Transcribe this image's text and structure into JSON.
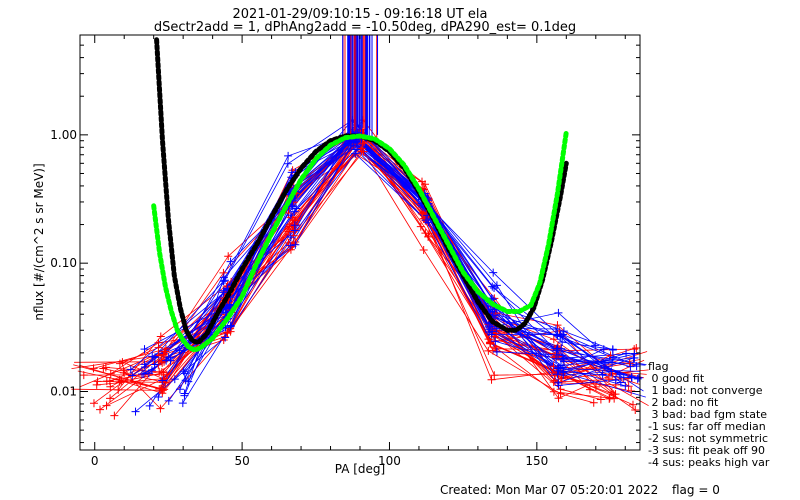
{
  "title_line1": "2021-01-29/09:10:15 - 09:16:18 UT ela",
  "title_line2": "dSectr2add = 1, dPhAng2add = -10.50deg, dPA290_est=   0.1deg",
  "created": "Created: Mon Mar 07 05:20:01 2022",
  "flag_value": "flag = 0",
  "legend": {
    "title": "flag",
    "items": [
      " 0 good fit",
      " 1 bad: not converge",
      " 2 bad: no fit",
      " 3 bad: bad fgm state",
      "-1 sus: far off median",
      "-2 sus: not symmetric",
      "-3 sus: fit peak off 90",
      "-4 sus: peaks high var"
    ]
  },
  "colors": {
    "red": "#ff0000",
    "blue": "#0000ff",
    "fit_black": "#000000",
    "fit_green": "#00ff00"
  },
  "chart_data": {
    "type": "line",
    "xlabel": "PA [deg]",
    "ylabel": "nflux [#/(cm^2 s sr MeV)]",
    "xlim": [
      -5,
      185
    ],
    "ylim": [
      0.0035,
      6.0
    ],
    "yscale": "log",
    "x_ticks": [
      0,
      50,
      100,
      150
    ],
    "x_tick_labels": [
      "0",
      "50",
      "100",
      "150"
    ],
    "y_ticks": [
      0.01,
      0.1,
      1.0
    ],
    "y_tick_labels": [
      "0.01",
      "0.10",
      "1.00"
    ],
    "sample_pa_red": [
      2,
      23,
      45,
      67,
      90,
      112,
      135,
      157,
      178
    ],
    "sample_pa_blue": [
      22,
      45,
      67,
      88,
      112,
      135,
      158,
      178
    ],
    "profile_red": [
      0.013,
      0.015,
      0.045,
      0.25,
      0.95,
      0.28,
      0.028,
      0.017,
      0.012
    ],
    "profile_blue": [
      0.014,
      0.05,
      0.3,
      0.97,
      0.3,
      0.045,
      0.022,
      0.016
    ],
    "series": [
      {
        "name": "fit-black",
        "x": [
          21,
          23,
          25,
          27,
          29,
          31,
          33,
          35,
          38,
          42,
          46,
          50,
          55,
          60,
          65,
          70,
          75,
          80,
          85,
          90,
          95,
          100,
          105,
          110,
          115,
          120,
          125,
          130,
          135,
          140,
          143,
          146,
          149,
          152,
          155,
          158,
          160
        ],
        "values": [
          5.5,
          0.9,
          0.22,
          0.08,
          0.045,
          0.03,
          0.025,
          0.024,
          0.028,
          0.042,
          0.06,
          0.09,
          0.14,
          0.23,
          0.37,
          0.55,
          0.74,
          0.9,
          0.98,
          0.98,
          0.9,
          0.74,
          0.55,
          0.36,
          0.22,
          0.13,
          0.08,
          0.05,
          0.035,
          0.03,
          0.03,
          0.034,
          0.045,
          0.075,
          0.15,
          0.33,
          0.6
        ]
      },
      {
        "name": "fit-green",
        "x": [
          20,
          22,
          24,
          26,
          28,
          30,
          32,
          34,
          36,
          40,
          45,
          50,
          55,
          60,
          65,
          70,
          75,
          80,
          85,
          90,
          95,
          100,
          105,
          110,
          115,
          120,
          125,
          130,
          135,
          140,
          144,
          148,
          151,
          154,
          157,
          160
        ],
        "values": [
          0.28,
          0.12,
          0.065,
          0.042,
          0.03,
          0.025,
          0.022,
          0.021,
          0.022,
          0.026,
          0.037,
          0.055,
          0.1,
          0.17,
          0.28,
          0.45,
          0.65,
          0.83,
          0.95,
          0.98,
          0.93,
          0.78,
          0.58,
          0.38,
          0.23,
          0.14,
          0.085,
          0.06,
          0.048,
          0.042,
          0.042,
          0.047,
          0.07,
          0.14,
          0.35,
          1.05
        ]
      }
    ]
  }
}
